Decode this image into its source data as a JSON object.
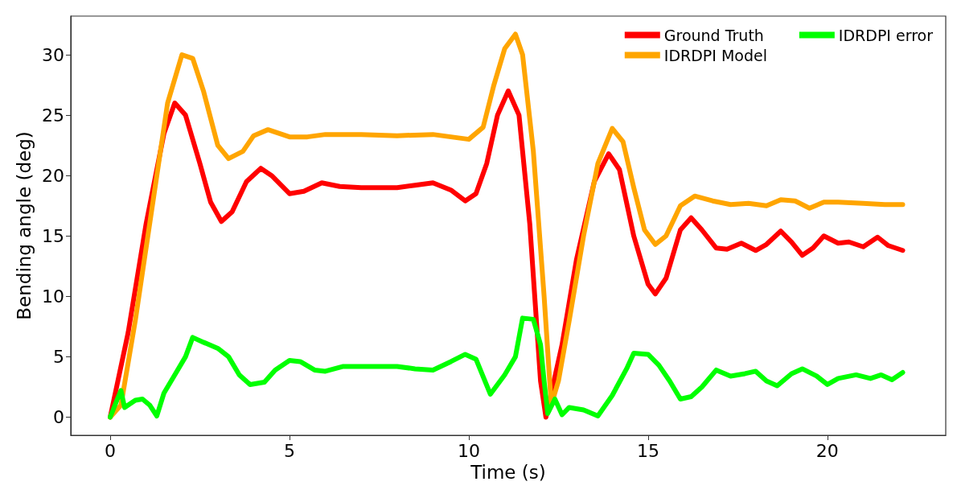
{
  "chart_data": {
    "type": "line",
    "xlabel": "Time (s)",
    "ylabel": "Bending angle (deg)",
    "xlim": [
      -1.1,
      23.3
    ],
    "ylim": [
      -1.5,
      33.2
    ],
    "xticks": [
      0,
      5,
      10,
      15,
      20
    ],
    "yticks": [
      0,
      5,
      10,
      15,
      20,
      25,
      30
    ],
    "grid": false,
    "legend": "top right",
    "marker": "none",
    "line_style": "solid",
    "series": [
      {
        "name": "Ground Truth",
        "color": "#ff0000",
        "x": [
          0,
          0.5,
          1.0,
          1.5,
          1.8,
          2.1,
          2.5,
          2.8,
          3.1,
          3.4,
          3.8,
          4.2,
          4.5,
          5,
          5.4,
          5.9,
          6.4,
          7,
          8,
          8.5,
          9,
          9.5,
          9.9,
          10.2,
          10.5,
          10.8,
          11.1,
          11.4,
          11.7,
          12.0,
          12.15,
          12.6,
          13,
          13.5,
          13.9,
          14.2,
          14.6,
          15,
          15.2,
          15.5,
          15.9,
          16.2,
          16.5,
          16.9,
          17.2,
          17.6,
          18.0,
          18.3,
          18.7,
          19.0,
          19.3,
          19.6,
          19.9,
          20.3,
          20.6,
          21.0,
          21.4,
          21.7,
          22.1
        ],
        "values": [
          0,
          7,
          16,
          23.5,
          26,
          25,
          21,
          17.8,
          16.2,
          17,
          19.5,
          20.6,
          20,
          18.5,
          18.7,
          19.4,
          19.1,
          19,
          19,
          19.2,
          19.4,
          18.8,
          17.9,
          18.5,
          21,
          25,
          27,
          25,
          16,
          3,
          0,
          6,
          13,
          19.5,
          21.8,
          20.5,
          15,
          11,
          10.2,
          11.5,
          15.5,
          16.5,
          15.5,
          14,
          13.9,
          14.4,
          13.8,
          14.3,
          15.4,
          14.5,
          13.4,
          14,
          15,
          14.4,
          14.5,
          14.1,
          14.9,
          14.2,
          13.8
        ]
      },
      {
        "name": "IDRDPI Model",
        "color": "#ffa500",
        "x": [
          0,
          0.3,
          0.7,
          1.2,
          1.6,
          2.0,
          2.3,
          2.6,
          3.0,
          3.3,
          3.7,
          4.0,
          4.4,
          5,
          5.5,
          6,
          7,
          8,
          9,
          9.5,
          10,
          10.4,
          10.7,
          11.0,
          11.3,
          11.5,
          11.8,
          12.1,
          12.3,
          12.5,
          12.8,
          13.2,
          13.6,
          14.0,
          14.3,
          14.6,
          14.9,
          15.2,
          15.5,
          15.9,
          16.3,
          16.8,
          17.3,
          17.8,
          18.3,
          18.7,
          19.1,
          19.5,
          19.9,
          20.3,
          21,
          21.6,
          22.1
        ],
        "values": [
          0,
          1,
          8,
          18,
          26,
          30,
          29.7,
          27,
          22.5,
          21.4,
          22,
          23.3,
          23.8,
          23.2,
          23.2,
          23.4,
          23.4,
          23.3,
          23.4,
          23.2,
          23,
          24,
          27.5,
          30.5,
          31.7,
          30,
          22,
          10,
          1,
          3,
          8,
          15,
          21,
          23.9,
          22.8,
          19,
          15.5,
          14.3,
          15,
          17.5,
          18.3,
          17.9,
          17.6,
          17.7,
          17.5,
          18,
          17.9,
          17.3,
          17.8,
          17.8,
          17.7,
          17.6,
          17.6
        ]
      },
      {
        "name": "IDRDPI error",
        "color": "#00ff00",
        "x": [
          0,
          0.2,
          0.3,
          0.4,
          0.7,
          0.9,
          1.1,
          1.3,
          1.5,
          1.8,
          2.1,
          2.3,
          2.6,
          3.0,
          3.3,
          3.6,
          3.9,
          4.3,
          4.6,
          5.0,
          5.3,
          5.7,
          6.0,
          6.5,
          7,
          8,
          8.5,
          9,
          9.5,
          9.9,
          10.2,
          10.6,
          11.0,
          11.3,
          11.5,
          11.8,
          12.0,
          12.1,
          12.2,
          12.4,
          12.6,
          12.8,
          13.2,
          13.6,
          14.0,
          14.4,
          14.6,
          15.0,
          15.3,
          15.6,
          15.9,
          16.2,
          16.5,
          16.9,
          17.3,
          17.7,
          18.0,
          18.3,
          18.6,
          19.0,
          19.3,
          19.7,
          20.0,
          20.3,
          20.8,
          21.2,
          21.5,
          21.8,
          22.1
        ],
        "values": [
          0,
          1.5,
          2.2,
          0.8,
          1.4,
          1.5,
          1,
          0.1,
          2,
          3.5,
          5,
          6.6,
          6.2,
          5.7,
          5,
          3.5,
          2.7,
          2.9,
          3.9,
          4.7,
          4.6,
          3.9,
          3.8,
          4.2,
          4.2,
          4.2,
          4.0,
          3.9,
          4.6,
          5.2,
          4.8,
          1.9,
          3.5,
          5,
          8.2,
          8.1,
          6,
          3,
          0.3,
          1.5,
          0.2,
          0.8,
          0.6,
          0.1,
          1.8,
          4,
          5.3,
          5.2,
          4.3,
          3.0,
          1.5,
          1.7,
          2.5,
          3.9,
          3.4,
          3.6,
          3.8,
          3.0,
          2.6,
          3.6,
          4.0,
          3.4,
          2.7,
          3.2,
          3.5,
          3.2,
          3.5,
          3.1,
          3.7
        ]
      }
    ]
  }
}
